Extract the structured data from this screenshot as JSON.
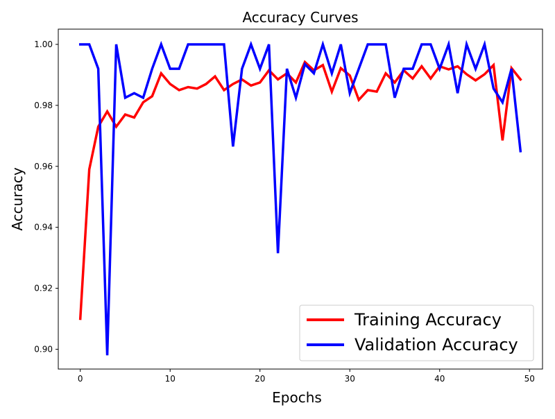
{
  "chart_data": {
    "type": "line",
    "title": "Accuracy Curves",
    "xlabel": "Epochs",
    "ylabel": "Accuracy",
    "xlim": [
      -2.45,
      51.45
    ],
    "ylim": [
      0.8935,
      1.005
    ],
    "xticks": [
      0,
      10,
      20,
      30,
      40,
      50
    ],
    "xtick_labels": [
      "0",
      "10",
      "20",
      "30",
      "40",
      "50"
    ],
    "yticks": [
      0.9,
      0.92,
      0.94,
      0.96,
      0.98,
      1.0
    ],
    "ytick_labels": [
      "0.90",
      "0.92",
      "0.94",
      "0.96",
      "0.98",
      "1.00"
    ],
    "grid": false,
    "legend_position": "bottom-right",
    "x": [
      0,
      1,
      2,
      3,
      4,
      5,
      6,
      7,
      8,
      9,
      10,
      11,
      12,
      13,
      14,
      15,
      16,
      17,
      18,
      19,
      20,
      21,
      22,
      23,
      24,
      25,
      26,
      27,
      28,
      29,
      30,
      31,
      32,
      33,
      34,
      35,
      36,
      37,
      38,
      39,
      40,
      41,
      42,
      43,
      44,
      45,
      46,
      47,
      48,
      49
    ],
    "series": [
      {
        "name": "Training Accuracy",
        "color": "#ff0000",
        "values": [
          0.91,
          0.959,
          0.973,
          0.978,
          0.973,
          0.977,
          0.976,
          0.981,
          0.983,
          0.9905,
          0.987,
          0.985,
          0.986,
          0.9855,
          0.987,
          0.9895,
          0.985,
          0.987,
          0.9885,
          0.9865,
          0.9875,
          0.9915,
          0.9885,
          0.9905,
          0.9875,
          0.9942,
          0.9915,
          0.9932,
          0.9845,
          0.9922,
          0.9898,
          0.9818,
          0.985,
          0.9845,
          0.9905,
          0.9875,
          0.9915,
          0.9888,
          0.9928,
          0.9888,
          0.9928,
          0.9918,
          0.9928,
          0.9902,
          0.9882,
          0.9902,
          0.9932,
          0.9685,
          0.9922,
          0.9885
        ]
      },
      {
        "name": "Validation Accuracy",
        "color": "#0000ff",
        "values": [
          1.0,
          1.0,
          0.992,
          0.898,
          1.0,
          0.9825,
          0.984,
          0.9825,
          0.992,
          1.0,
          0.992,
          0.992,
          1.0,
          1.0,
          1.0,
          1.0,
          1.0,
          0.9665,
          0.992,
          1.0,
          0.992,
          1.0,
          0.9315,
          0.992,
          0.9825,
          0.9935,
          0.9905,
          1.0,
          0.9905,
          1.0,
          0.984,
          0.992,
          1.0,
          1.0,
          1.0,
          0.9825,
          0.992,
          0.992,
          1.0,
          1.0,
          0.992,
          1.0,
          0.984,
          1.0,
          0.992,
          1.0,
          0.9855,
          0.981,
          0.992,
          0.965
        ]
      }
    ]
  }
}
